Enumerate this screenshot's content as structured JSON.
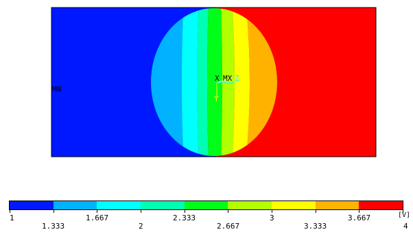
{
  "plot": {
    "left_color": "#0018ff",
    "right_color": "#ff0000",
    "min_label": "MN",
    "max_label": "MX",
    "axis_x": "X",
    "axis_z": "Z",
    "axis_y": "Y",
    "contour_colors": [
      "#0018ff",
      "#00b2ff",
      "#00ffff",
      "#00ffb2",
      "#00ff18",
      "#b2ff00",
      "#ffff00",
      "#ffb200",
      "#ff0000"
    ]
  },
  "colorbar": {
    "unit": "[V]",
    "colors": [
      "#0018ff",
      "#00b2ff",
      "#00ffff",
      "#00ffb2",
      "#00ff18",
      "#b2ff00",
      "#ffff00",
      "#ffb200",
      "#ff0000"
    ],
    "labels_top": [
      "1",
      "1.667",
      "2.333",
      "3",
      "3.667"
    ],
    "labels_bottom": [
      "1.333",
      "2",
      "2.667",
      "3.333",
      "4"
    ]
  }
}
